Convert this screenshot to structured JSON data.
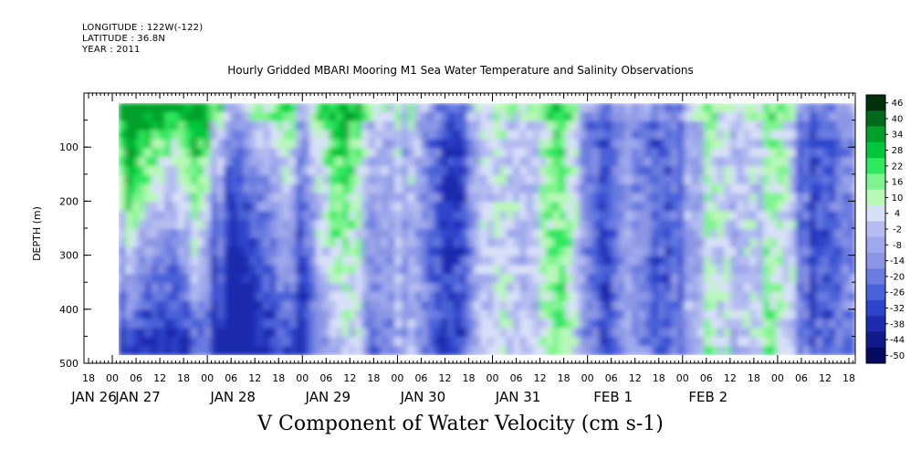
{
  "header": {
    "longitude": "LONGITUDE : 122W(-122)",
    "latitude": "LATITUDE : 36.8N",
    "year": "YEAR : 2011"
  },
  "chart_data": {
    "type": "heatmap",
    "title": "Hourly Gridded MBARI Mooring M1 Sea Water Temperature and Salinity Observations",
    "xlabel": "V Component of Water Velocity (cm s-1)",
    "ylabel": "DEPTH (m)",
    "yticks": [
      "100",
      "200",
      "300",
      "400",
      "500"
    ],
    "ylim": [
      500,
      0
    ],
    "x_hour_ticks": [
      "18",
      "00",
      "06",
      "12",
      "18",
      "00",
      "06",
      "12",
      "18",
      "00",
      "06",
      "12",
      "18",
      "00",
      "06",
      "12",
      "18",
      "00",
      "06",
      "12",
      "18",
      "00",
      "06",
      "12",
      "18",
      "00",
      "06",
      "12",
      "18",
      "00",
      "06",
      "12",
      "18"
    ],
    "x_date_labels": [
      "JAN 26",
      "JAN 27",
      "JAN 28",
      "JAN 29",
      "JAN 30",
      "JAN 31",
      "FEB  1",
      "FEB  2"
    ],
    "colorbar_levels": [
      "46",
      "40",
      "34",
      "28",
      "22",
      "16",
      "10",
      "4",
      "-2",
      "-8",
      "-14",
      "-20",
      "-26",
      "-32",
      "-38",
      "-44",
      "-50"
    ],
    "colorbar_colors": [
      "#00300c",
      "#006a1c",
      "#00a12a",
      "#00c83a",
      "#2ee85e",
      "#7ef48e",
      "#b8f8b8",
      "#d8e0f8",
      "#b4bcf0",
      "#9ea8ec",
      "#8c96e4",
      "#6a7ce0",
      "#4a62d8",
      "#2e44cc",
      "#1e2cb0",
      "#101c8c",
      "#050a60"
    ]
  }
}
